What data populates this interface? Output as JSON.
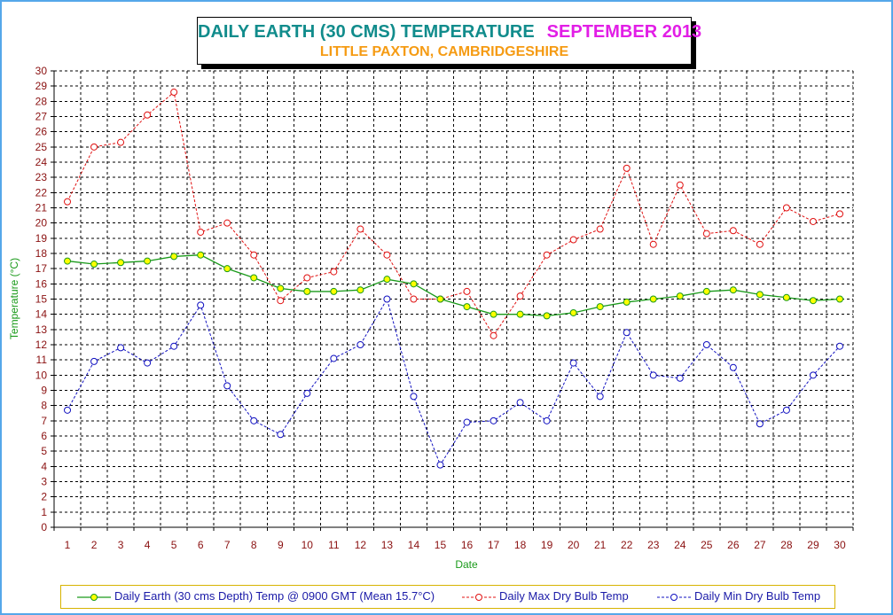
{
  "title": {
    "main": "DAILY EARTH (30 CMS) TEMPERATURE",
    "month": "SEPTEMBER 2013",
    "subtitle": "LITTLE PAXTON, CAMBRIDGESHIRE"
  },
  "colors": {
    "frame": "#55a7ea",
    "title_main": "#118c8c",
    "title_month": "#e21ee6",
    "subtitle": "#f59b13",
    "axis_label": "#1a9a1a",
    "tick_label": "#8a1010",
    "earth": "#1a9a1a",
    "earth_marker": "#ffff00",
    "max": "#e01010",
    "min": "#1010c0"
  },
  "chart_data": {
    "type": "line",
    "xlabel": "Date",
    "ylabel": "Temperature (°C)",
    "ylim": [
      0,
      30
    ],
    "grid": true,
    "legend_position": "bottom",
    "x": [
      1,
      2,
      3,
      4,
      5,
      6,
      7,
      8,
      9,
      10,
      11,
      12,
      13,
      14,
      15,
      16,
      17,
      18,
      19,
      20,
      21,
      22,
      23,
      24,
      25,
      26,
      27,
      28,
      29,
      30
    ],
    "series": [
      {
        "name": "Daily Earth (30 cms Depth) Temp @ 0900 GMT (Mean 15.7°C)",
        "style": "solid",
        "values": [
          17.5,
          17.3,
          17.4,
          17.5,
          17.8,
          17.9,
          17.0,
          16.4,
          15.7,
          15.5,
          15.5,
          15.6,
          16.3,
          16.0,
          15.0,
          14.5,
          14.0,
          14.0,
          13.9,
          14.1,
          14.5,
          14.8,
          15.0,
          15.2,
          15.5,
          15.6,
          15.3,
          15.1,
          14.9,
          15.0
        ]
      },
      {
        "name": "Daily Max Dry Bulb Temp",
        "style": "dashed",
        "values": [
          21.4,
          25.0,
          25.3,
          27.1,
          28.6,
          19.4,
          20.0,
          17.9,
          14.9,
          16.4,
          16.8,
          19.6,
          17.9,
          15.0,
          15.0,
          15.5,
          12.6,
          15.2,
          17.9,
          18.9,
          19.6,
          23.6,
          18.6,
          22.5,
          19.3,
          19.5,
          18.6,
          21.0,
          20.1,
          20.6
        ]
      },
      {
        "name": "Daily Min Dry Bulb Temp",
        "style": "dashed",
        "values": [
          7.7,
          10.9,
          11.8,
          10.8,
          11.9,
          14.6,
          9.3,
          7.0,
          6.1,
          8.8,
          11.1,
          12.0,
          15.0,
          8.6,
          4.1,
          6.9,
          7.0,
          8.2,
          7.0,
          10.8,
          8.6,
          12.8,
          10.0,
          9.8,
          12.0,
          10.5,
          6.8,
          7.7,
          10.0,
          11.9
        ]
      }
    ]
  }
}
